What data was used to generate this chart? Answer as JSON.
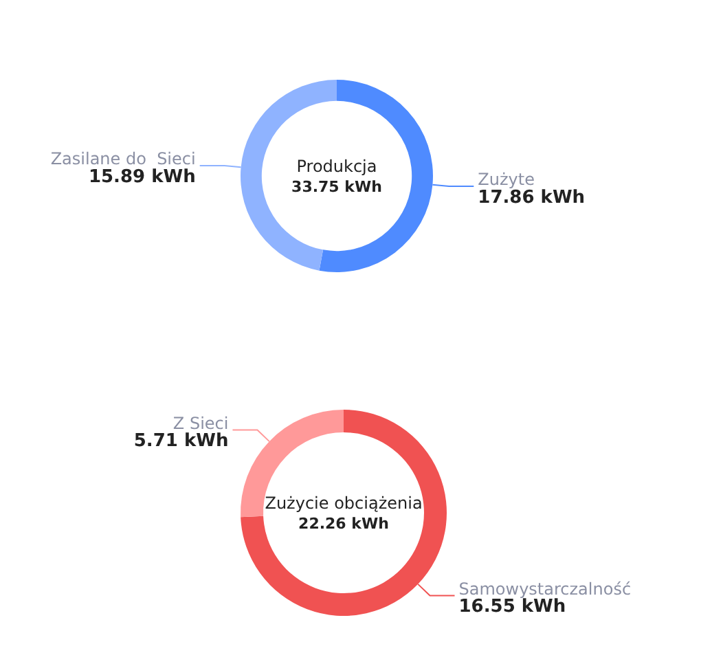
{
  "chart_data": [
    {
      "type": "donut",
      "title": "Produkcja",
      "annotations": [
        "33.75 kWh"
      ],
      "categories": [
        "Zużyte",
        "Zasilane do  Sieci"
      ],
      "values": [
        17.86,
        15.89
      ],
      "colors": [
        "#4f8bff",
        "#8fb3ff"
      ],
      "value_labels": [
        "17.86 kWh",
        "15.89 kWh"
      ],
      "legend": false
    },
    {
      "type": "donut",
      "title": "Zużycie obciążenia",
      "annotations": [
        "22.26 kWh"
      ],
      "categories": [
        "Samowystarczalność",
        "Z Sieci"
      ],
      "values": [
        16.55,
        5.71
      ],
      "colors": [
        "#f05252",
        "#ff9999"
      ],
      "value_labels": [
        "16.55 kWh",
        "5.71 kWh"
      ],
      "legend": false
    }
  ]
}
